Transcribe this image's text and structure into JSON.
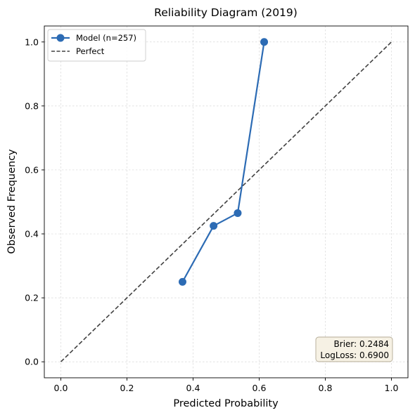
{
  "chart_data": {
    "type": "line",
    "title": "Reliability Diagram (2019)",
    "xlabel": "Predicted Probability",
    "ylabel": "Observed Frequency",
    "xlim": [
      -0.05,
      1.05
    ],
    "ylim": [
      -0.05,
      1.05
    ],
    "xticks": [
      "0.0",
      "0.2",
      "0.4",
      "0.6",
      "0.8",
      "1.0"
    ],
    "yticks": [
      "0.0",
      "0.2",
      "0.4",
      "0.6",
      "0.8",
      "1.0"
    ],
    "grid": true,
    "legend_position": "top-left",
    "series": [
      {
        "name": "Model (n=257)",
        "color": "#2c6bb4",
        "style": "solid-with-markers",
        "x": [
          0.368,
          0.462,
          0.535,
          0.615
        ],
        "y": [
          0.25,
          0.425,
          0.465,
          1.0
        ]
      },
      {
        "name": "Perfect",
        "color": "#404040",
        "style": "dashed",
        "x": [
          0.0,
          1.0
        ],
        "y": [
          0.0,
          1.0
        ]
      }
    ],
    "annotation": {
      "lines": [
        "Brier: 0.2484",
        "LogLoss: 0.6900"
      ],
      "position": "bottom-right",
      "background": "#f6f1e4",
      "border": "#b4ab96"
    }
  }
}
